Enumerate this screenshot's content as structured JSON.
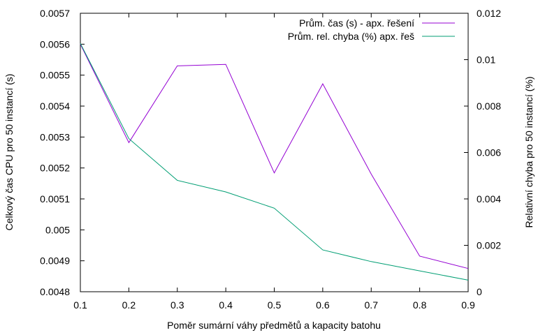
{
  "chart_data": {
    "type": "line",
    "xlabel": "Poměr sumární váhy předmětů a kapacity batohu",
    "ylabel": "Celkový čas CPU pro 50 instancí (s)",
    "y2label": "Relativní chyba pro 50 instancí (%)",
    "xlim": [
      0.1,
      0.9
    ],
    "ylim": [
      0.0048,
      0.0057
    ],
    "y2lim": [
      0,
      0.012
    ],
    "x_ticks": [
      "0.1",
      "0.2",
      "0.3",
      "0.4",
      "0.5",
      "0.6",
      "0.7",
      "0.8",
      "0.9"
    ],
    "y_ticks": [
      "0.0048",
      "0.0049",
      "0.005",
      "0.0051",
      "0.0052",
      "0.0053",
      "0.0054",
      "0.0055",
      "0.0056",
      "0.0057"
    ],
    "y2_ticks": [
      "0",
      "0.002",
      "0.004",
      "0.006",
      "0.008",
      "0.01",
      "0.012"
    ],
    "grid": false,
    "legend_position": "top-right",
    "series": [
      {
        "name": "Prům. čas (s) - apx. řešení",
        "axis": "left",
        "color": "#9400d3",
        "x": [
          0.1,
          0.2,
          0.3,
          0.4,
          0.5,
          0.6,
          0.7,
          0.8,
          0.9
        ],
        "y": [
          0.0056,
          0.005282,
          0.00553,
          0.005535,
          0.005184,
          0.005472,
          0.00518,
          0.004915,
          0.004875
        ]
      },
      {
        "name": "Prům. rel. chyba (%) apx. řeš",
        "axis": "right",
        "color": "#009e73",
        "x": [
          0.1,
          0.2,
          0.3,
          0.4,
          0.5,
          0.6,
          0.7,
          0.8,
          0.9
        ],
        "y": [
          0.0107,
          0.0066,
          0.0048,
          0.0043,
          0.0036,
          0.0018,
          0.0013,
          0.0009,
          0.0005
        ]
      }
    ]
  }
}
